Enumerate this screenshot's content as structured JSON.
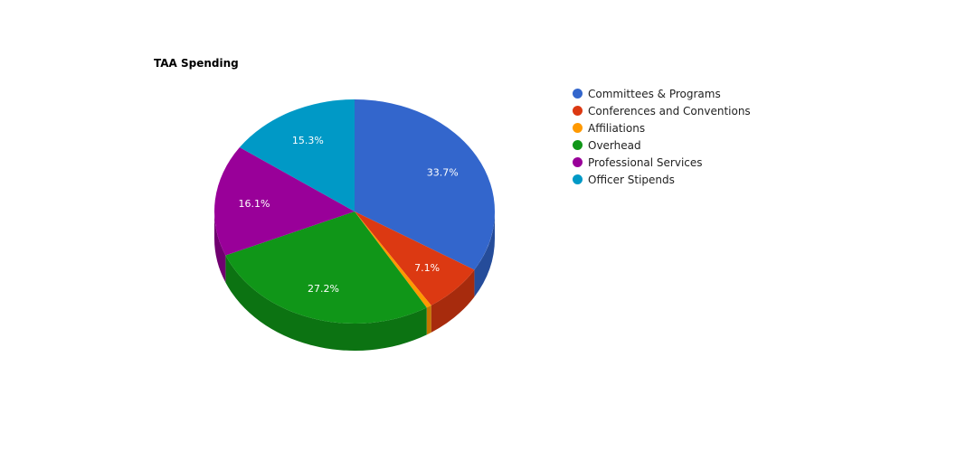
{
  "chart_data": {
    "type": "pie",
    "title": "TAA Spending",
    "legend_position": "right",
    "slices": [
      {
        "label": "Committees & Programs",
        "value": 33.7,
        "value_label": "33.7%",
        "color": "#3366cc",
        "side_color": "#254c9a"
      },
      {
        "label": "Conferences and Conventions",
        "value": 7.1,
        "value_label": "7.1%",
        "color": "#dc3912",
        "side_color": "#a72b0d"
      },
      {
        "label": "Affiliations",
        "value": 0.6,
        "value_label": "",
        "color": "#ff9900",
        "side_color": "#c47600"
      },
      {
        "label": "Overhead",
        "value": 27.2,
        "value_label": "27.2%",
        "color": "#109618",
        "side_color": "#0c7312"
      },
      {
        "label": "Professional Services",
        "value": 16.1,
        "value_label": "16.1%",
        "color": "#990099",
        "side_color": "#700070"
      },
      {
        "label": "Officer Stipends",
        "value": 15.3,
        "value_label": "15.3%",
        "color": "#0099c6",
        "side_color": "#007396"
      }
    ]
  }
}
